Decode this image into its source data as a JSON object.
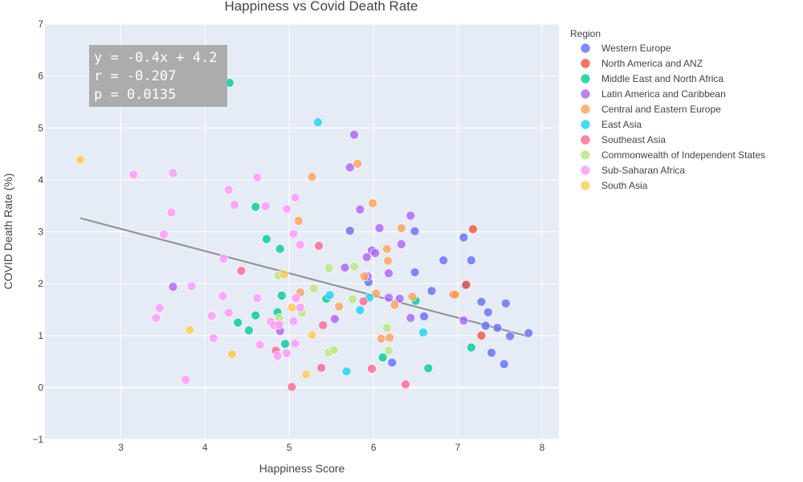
{
  "chart_data": {
    "type": "scatter",
    "title": "Happiness vs Covid Death Rate",
    "xlabel": "Happiness Score",
    "ylabel": "COVID Death Rate (%)",
    "xlim": [
      2.1,
      8.2
    ],
    "ylim": [
      -1,
      7
    ],
    "xticks": [
      3,
      4,
      5,
      6,
      7,
      8
    ],
    "yticks": [
      -1,
      0,
      1,
      2,
      3,
      4,
      5,
      6,
      7
    ],
    "grid": true,
    "legend_title": "Region",
    "legend_position": "right",
    "trendline": {
      "equation": "y = -0.4x + 4.2",
      "slope": -0.4,
      "intercept": 4.2,
      "x_range": [
        2.52,
        7.84
      ],
      "color": "#909090"
    },
    "stats": [
      "y = -0.4x + 4.2",
      "r = -0.207",
      "p = 0.0135"
    ],
    "series": [
      {
        "name": "Western Europe",
        "color": "#636efa",
        "points": [
          [
            7.84,
            1.05
          ],
          [
            7.62,
            0.99
          ],
          [
            7.57,
            1.62
          ],
          [
            7.55,
            0.45
          ],
          [
            7.47,
            1.15
          ],
          [
            7.4,
            0.67
          ],
          [
            7.36,
            1.45
          ],
          [
            7.33,
            1.19
          ],
          [
            7.28,
            1.65
          ],
          [
            7.16,
            2.45
          ],
          [
            7.09,
            1.97
          ],
          [
            7.07,
            2.89
          ],
          [
            6.83,
            2.45
          ],
          [
            6.69,
            1.86
          ],
          [
            6.6,
            1.37
          ],
          [
            6.49,
            2.22
          ],
          [
            6.49,
            3.01
          ],
          [
            6.22,
            0.48
          ],
          [
            5.94,
            2.03
          ],
          [
            5.72,
            3.02
          ]
        ]
      },
      {
        "name": "North America and ANZ",
        "color": "#ef553b",
        "points": [
          [
            7.18,
            3.05
          ],
          [
            7.28,
            1.0
          ],
          [
            7.1,
            1.98
          ],
          [
            6.95,
            1.79
          ]
        ]
      },
      {
        "name": "Middle East and North Africa",
        "color": "#00cc96",
        "points": [
          [
            4.29,
            5.87
          ],
          [
            4.6,
            3.48
          ],
          [
            4.73,
            2.86
          ],
          [
            4.89,
            2.67
          ],
          [
            4.86,
            1.45
          ],
          [
            4.6,
            1.39
          ],
          [
            4.52,
            1.1
          ],
          [
            4.39,
            1.25
          ],
          [
            4.91,
            1.77
          ],
          [
            4.95,
            0.84
          ],
          [
            5.44,
            1.71
          ],
          [
            6.11,
            0.58
          ],
          [
            6.65,
            0.37
          ],
          [
            6.5,
            1.67
          ],
          [
            7.16,
            0.77
          ]
        ]
      },
      {
        "name": "Latin America and Caribbean",
        "color": "#ab63fa",
        "points": [
          [
            5.77,
            4.87
          ],
          [
            5.72,
            4.24
          ],
          [
            5.84,
            3.43
          ],
          [
            6.07,
            3.07
          ],
          [
            6.44,
            3.31
          ],
          [
            6.33,
            2.76
          ],
          [
            5.98,
            2.64
          ],
          [
            6.02,
            2.59
          ],
          [
            5.92,
            2.51
          ],
          [
            5.66,
            2.31
          ],
          [
            5.93,
            2.14
          ],
          [
            6.18,
            2.2
          ],
          [
            6.18,
            1.73
          ],
          [
            6.31,
            1.71
          ],
          [
            5.54,
            1.32
          ],
          [
            4.89,
            1.09
          ],
          [
            3.62,
            1.94
          ],
          [
            6.44,
            1.34
          ],
          [
            7.07,
            1.29
          ]
        ]
      },
      {
        "name": "Central and Eastern Europe",
        "color": "#ffa15a",
        "points": [
          [
            5.27,
            4.06
          ],
          [
            5.81,
            4.31
          ],
          [
            5.99,
            3.55
          ],
          [
            5.11,
            3.21
          ],
          [
            6.33,
            3.07
          ],
          [
            6.16,
            2.67
          ],
          [
            6.17,
            2.44
          ],
          [
            5.89,
            2.14
          ],
          [
            6.03,
            1.81
          ],
          [
            5.13,
            1.83
          ],
          [
            6.46,
            1.75
          ],
          [
            6.97,
            1.79
          ],
          [
            6.25,
            1.59
          ],
          [
            5.59,
            1.56
          ],
          [
            6.09,
            0.94
          ],
          [
            6.19,
            0.96
          ]
        ]
      },
      {
        "name": "East Asia",
        "color": "#19d3f3",
        "points": [
          [
            5.34,
            5.11
          ],
          [
            5.48,
            1.78
          ],
          [
            5.95,
            1.73
          ],
          [
            5.84,
            1.49
          ],
          [
            6.59,
            1.06
          ],
          [
            5.68,
            0.31
          ]
        ]
      },
      {
        "name": "Southeast Asia",
        "color": "#ff6692",
        "points": [
          [
            5.35,
            2.73
          ],
          [
            4.43,
            2.25
          ],
          [
            5.88,
            1.66
          ],
          [
            5.4,
            1.2
          ],
          [
            4.84,
            0.71
          ],
          [
            5.38,
            0.38
          ],
          [
            5.98,
            0.36
          ],
          [
            6.38,
            0.06
          ],
          [
            5.03,
            0.01
          ]
        ]
      },
      {
        "name": "Commonwealth of Independent States",
        "color": "#b6e880",
        "points": [
          [
            5.47,
            2.3
          ],
          [
            5.77,
            2.33
          ],
          [
            5.29,
            1.91
          ],
          [
            5.75,
            1.7
          ],
          [
            5.15,
            1.44
          ],
          [
            4.88,
            1.34
          ],
          [
            4.87,
            2.16
          ],
          [
            6.16,
            1.15
          ],
          [
            5.47,
            0.68
          ],
          [
            5.53,
            0.72
          ],
          [
            6.18,
            0.71
          ]
        ]
      },
      {
        "name": "Sub-Saharan Africa",
        "color": "#ff97ff",
        "points": [
          [
            3.15,
            4.1
          ],
          [
            3.62,
            4.13
          ],
          [
            4.62,
            4.05
          ],
          [
            4.28,
            3.81
          ],
          [
            4.72,
            3.49
          ],
          [
            4.35,
            3.52
          ],
          [
            5.07,
            3.66
          ],
          [
            4.97,
            3.44
          ],
          [
            3.6,
            3.37
          ],
          [
            3.51,
            2.95
          ],
          [
            5.05,
            2.96
          ],
          [
            5.13,
            2.75
          ],
          [
            4.22,
            2.48
          ],
          [
            3.84,
            1.95
          ],
          [
            4.62,
            1.72
          ],
          [
            4.21,
            1.76
          ],
          [
            5.08,
            1.72
          ],
          [
            5.13,
            1.54
          ],
          [
            3.46,
            1.53
          ],
          [
            4.28,
            1.44
          ],
          [
            4.08,
            1.38
          ],
          [
            3.42,
            1.34
          ],
          [
            4.78,
            1.27
          ],
          [
            4.82,
            1.2
          ],
          [
            4.88,
            1.21
          ],
          [
            5.05,
            1.28
          ],
          [
            4.1,
            0.95
          ],
          [
            4.65,
            0.82
          ],
          [
            5.07,
            0.85
          ],
          [
            4.86,
            0.61
          ],
          [
            4.97,
            0.66
          ],
          [
            3.77,
            0.15
          ]
        ]
      },
      {
        "name": "South Asia",
        "color": "#fecb52",
        "points": [
          [
            2.52,
            4.39
          ],
          [
            4.94,
            2.18
          ],
          [
            5.03,
            1.54
          ],
          [
            3.82,
            1.11
          ],
          [
            5.27,
            1.01
          ],
          [
            4.32,
            0.64
          ],
          [
            5.2,
            0.25
          ]
        ]
      }
    ]
  }
}
